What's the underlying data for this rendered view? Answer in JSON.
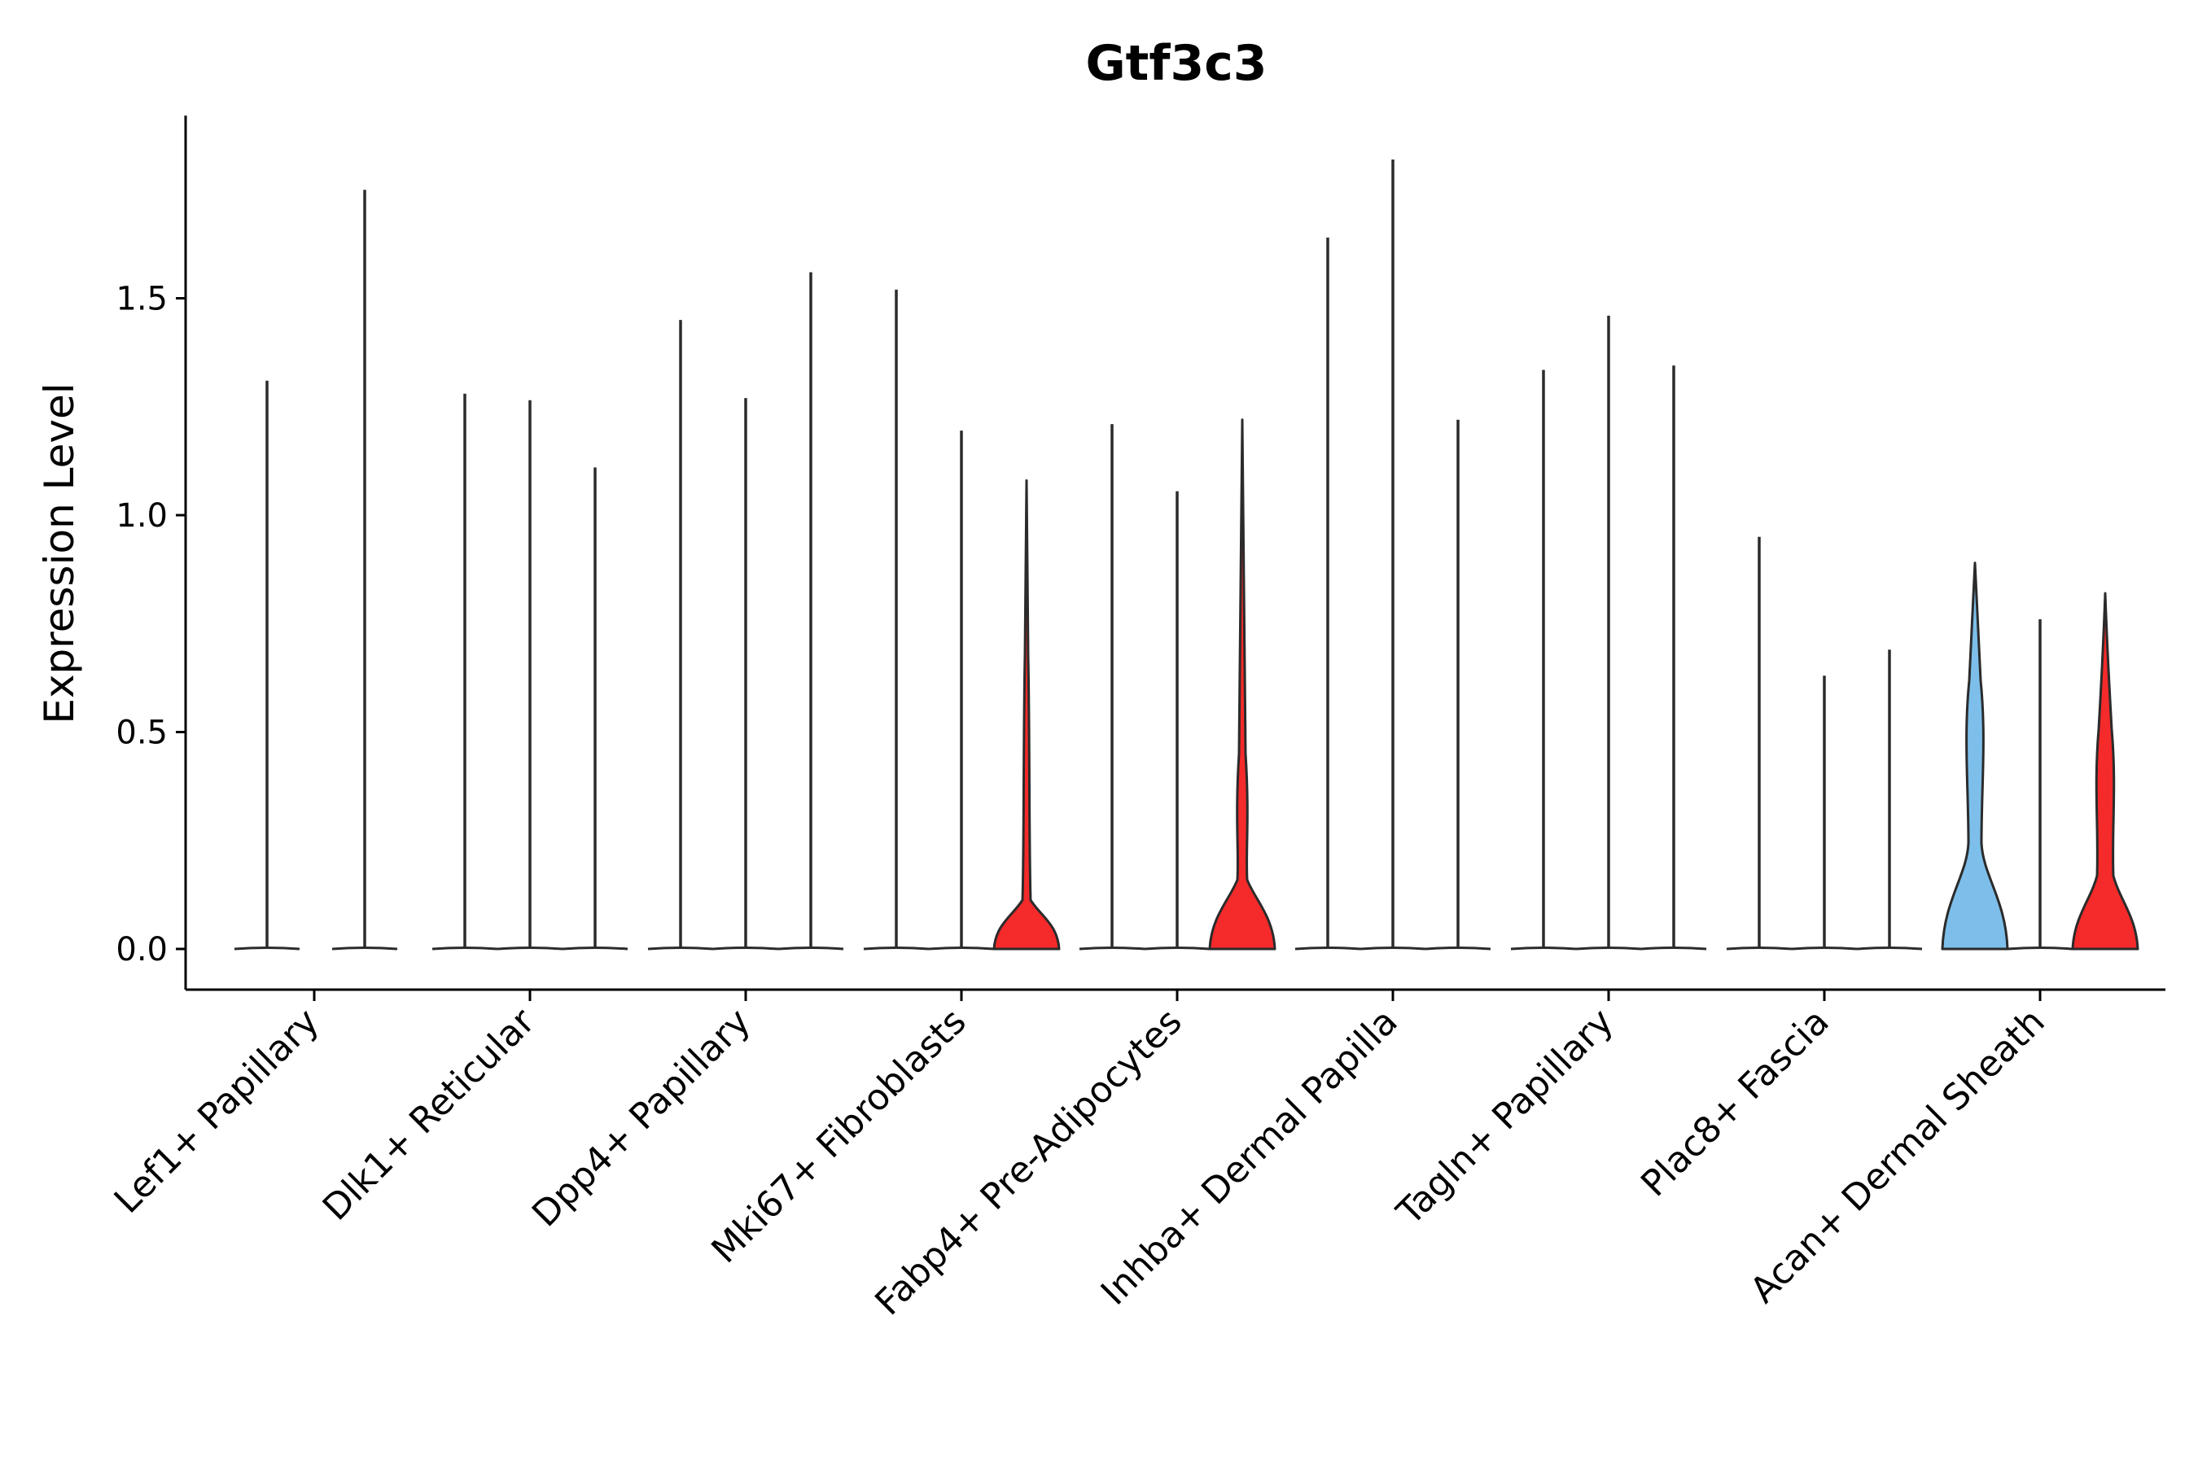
{
  "chart_data": {
    "type": "violin",
    "title": "Gtf3c3",
    "xlabel": "",
    "ylabel": "Expression Level",
    "ylim": [
      -0.09,
      1.92
    ],
    "yticks": [
      0.0,
      0.5,
      1.0,
      1.5
    ],
    "ytick_labels": [
      "0.0",
      "0.5",
      "1.0",
      "1.5"
    ],
    "grid": false,
    "colors": {
      "blue": "#7DBFEA",
      "red": "#F52A2A",
      "stroke": "#2b2b2b"
    },
    "categories": [
      "Lef1+ Papillary",
      "Dlk1+ Reticular",
      "Dpp4+ Papillary",
      "Mki67+ Fibroblasts",
      "Fabp4+ Pre-Adipocytes",
      "Inhba+ Dermal Papilla",
      "Tagln+ Papillary",
      "Plac8+ Fascia",
      "Acan+ Dermal Sheath"
    ],
    "groups": [
      {
        "category": "Lef1+ Papillary",
        "violins": [
          {
            "max": 1.31,
            "shape": "thin"
          },
          {
            "max": 1.75,
            "shape": "thin"
          }
        ]
      },
      {
        "category": "Dlk1+ Reticular",
        "violins": [
          {
            "max": 1.28,
            "shape": "thin"
          },
          {
            "max": 1.265,
            "shape": "thin"
          },
          {
            "max": 1.11,
            "shape": "thin"
          }
        ]
      },
      {
        "category": "Dpp4+ Papillary",
        "violins": [
          {
            "max": 1.45,
            "shape": "thin"
          },
          {
            "max": 1.27,
            "shape": "thin"
          },
          {
            "max": 1.56,
            "shape": "thin"
          }
        ]
      },
      {
        "category": "Mki67+ Fibroblasts",
        "violins": [
          {
            "max": 1.52,
            "shape": "thin"
          },
          {
            "max": 1.195,
            "shape": "thin"
          },
          {
            "max": 1.08,
            "shape": "red-small",
            "color": "red"
          }
        ]
      },
      {
        "category": "Fabp4+ Pre-Adipocytes",
        "violins": [
          {
            "max": 1.21,
            "shape": "thin"
          },
          {
            "max": 1.055,
            "shape": "thin"
          },
          {
            "max": 1.22,
            "shape": "red-medium",
            "color": "red"
          }
        ]
      },
      {
        "category": "Inhba+ Dermal Papilla",
        "violins": [
          {
            "max": 1.64,
            "shape": "thin"
          },
          {
            "max": 1.82,
            "shape": "thin"
          },
          {
            "max": 1.22,
            "shape": "thin"
          }
        ]
      },
      {
        "category": "Tagln+ Papillary",
        "violins": [
          {
            "max": 1.335,
            "shape": "thin"
          },
          {
            "max": 1.46,
            "shape": "thin"
          },
          {
            "max": 1.345,
            "shape": "thin"
          }
        ]
      },
      {
        "category": "Plac8+ Fascia",
        "violins": [
          {
            "max": 0.95,
            "shape": "thin"
          },
          {
            "max": 0.63,
            "shape": "thin"
          },
          {
            "max": 0.69,
            "shape": "thin"
          }
        ]
      },
      {
        "category": "Acan+ Dermal Sheath",
        "violins": [
          {
            "max": 0.89,
            "shape": "blue-full",
            "color": "blue"
          },
          {
            "max": 0.76,
            "shape": "thin"
          },
          {
            "max": 0.82,
            "shape": "red-full",
            "color": "red"
          }
        ]
      }
    ]
  }
}
